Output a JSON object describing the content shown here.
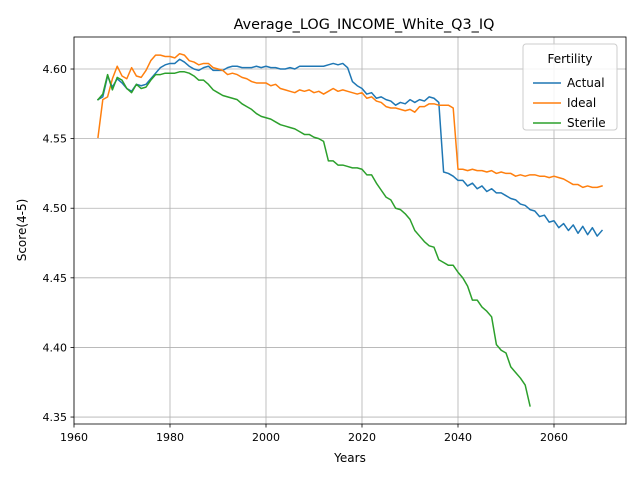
{
  "chart_data": {
    "type": "line",
    "title": "Average_LOG_INCOME_White_Q3_IQ",
    "xlabel": "Years",
    "ylabel": "Score(4-5)",
    "xlim": [
      1960,
      2075
    ],
    "ylim": [
      4.345,
      4.623
    ],
    "x_ticks": [
      1960,
      1980,
      2000,
      2020,
      2040,
      2060
    ],
    "y_ticks": [
      4.35,
      4.4,
      4.45,
      4.5,
      4.55,
      4.6
    ],
    "grid": true,
    "legend": {
      "title": "Fertility",
      "position": "top-right"
    },
    "series": [
      {
        "name": "Actual",
        "color": "#1f77b4",
        "points": [
          [
            1965,
            4.578
          ],
          [
            1966,
            4.58
          ],
          [
            1967,
            4.595
          ],
          [
            1968,
            4.587
          ],
          [
            1969,
            4.593
          ],
          [
            1970,
            4.59
          ],
          [
            1971,
            4.586
          ],
          [
            1972,
            4.584
          ],
          [
            1973,
            4.589
          ],
          [
            1974,
            4.588
          ],
          [
            1975,
            4.589
          ],
          [
            1976,
            4.593
          ],
          [
            1977,
            4.597
          ],
          [
            1978,
            4.601
          ],
          [
            1979,
            4.603
          ],
          [
            1980,
            4.604
          ],
          [
            1981,
            4.604
          ],
          [
            1982,
            4.607
          ],
          [
            1983,
            4.605
          ],
          [
            1984,
            4.602
          ],
          [
            1985,
            4.6
          ],
          [
            1986,
            4.599
          ],
          [
            1987,
            4.601
          ],
          [
            1988,
            4.602
          ],
          [
            1989,
            4.599
          ],
          [
            1990,
            4.599
          ],
          [
            1991,
            4.599
          ],
          [
            1992,
            4.601
          ],
          [
            1993,
            4.602
          ],
          [
            1994,
            4.602
          ],
          [
            1995,
            4.601
          ],
          [
            1996,
            4.601
          ],
          [
            1997,
            4.601
          ],
          [
            1998,
            4.602
          ],
          [
            1999,
            4.601
          ],
          [
            2000,
            4.602
          ],
          [
            2001,
            4.601
          ],
          [
            2002,
            4.601
          ],
          [
            2003,
            4.6
          ],
          [
            2004,
            4.6
          ],
          [
            2005,
            4.601
          ],
          [
            2006,
            4.6
          ],
          [
            2007,
            4.602
          ],
          [
            2008,
            4.602
          ],
          [
            2009,
            4.602
          ],
          [
            2010,
            4.602
          ],
          [
            2011,
            4.602
          ],
          [
            2012,
            4.602
          ],
          [
            2013,
            4.603
          ],
          [
            2014,
            4.604
          ],
          [
            2015,
            4.603
          ],
          [
            2016,
            4.604
          ],
          [
            2017,
            4.601
          ],
          [
            2018,
            4.591
          ],
          [
            2019,
            4.588
          ],
          [
            2020,
            4.586
          ],
          [
            2021,
            4.582
          ],
          [
            2022,
            4.583
          ],
          [
            2023,
            4.579
          ],
          [
            2024,
            4.58
          ],
          [
            2025,
            4.578
          ],
          [
            2026,
            4.577
          ],
          [
            2027,
            4.574
          ],
          [
            2028,
            4.576
          ],
          [
            2029,
            4.575
          ],
          [
            2030,
            4.578
          ],
          [
            2031,
            4.576
          ],
          [
            2032,
            4.578
          ],
          [
            2033,
            4.577
          ],
          [
            2034,
            4.58
          ],
          [
            2035,
            4.579
          ],
          [
            2036,
            4.576
          ],
          [
            2037,
            4.526
          ],
          [
            2038,
            4.525
          ],
          [
            2039,
            4.523
          ],
          [
            2040,
            4.52
          ],
          [
            2041,
            4.52
          ],
          [
            2042,
            4.516
          ],
          [
            2043,
            4.518
          ],
          [
            2044,
            4.514
          ],
          [
            2045,
            4.516
          ],
          [
            2046,
            4.512
          ],
          [
            2047,
            4.514
          ],
          [
            2048,
            4.511
          ],
          [
            2049,
            4.511
          ],
          [
            2050,
            4.509
          ],
          [
            2051,
            4.507
          ],
          [
            2052,
            4.506
          ],
          [
            2053,
            4.503
          ],
          [
            2054,
            4.502
          ],
          [
            2055,
            4.499
          ],
          [
            2056,
            4.498
          ],
          [
            2057,
            4.494
          ],
          [
            2058,
            4.495
          ],
          [
            2059,
            4.49
          ],
          [
            2060,
            4.491
          ],
          [
            2061,
            4.486
          ],
          [
            2062,
            4.489
          ],
          [
            2063,
            4.484
          ],
          [
            2064,
            4.488
          ],
          [
            2065,
            4.482
          ],
          [
            2066,
            4.487
          ],
          [
            2067,
            4.481
          ],
          [
            2068,
            4.486
          ],
          [
            2069,
            4.48
          ],
          [
            2070,
            4.484
          ]
        ]
      },
      {
        "name": "Ideal",
        "color": "#ff7f0e",
        "points": [
          [
            1965,
            4.551
          ],
          [
            1966,
            4.578
          ],
          [
            1967,
            4.58
          ],
          [
            1968,
            4.593
          ],
          [
            1969,
            4.602
          ],
          [
            1970,
            4.595
          ],
          [
            1971,
            4.593
          ],
          [
            1972,
            4.601
          ],
          [
            1973,
            4.595
          ],
          [
            1974,
            4.594
          ],
          [
            1975,
            4.599
          ],
          [
            1976,
            4.606
          ],
          [
            1977,
            4.61
          ],
          [
            1978,
            4.61
          ],
          [
            1979,
            4.609
          ],
          [
            1980,
            4.609
          ],
          [
            1981,
            4.608
          ],
          [
            1982,
            4.611
          ],
          [
            1983,
            4.61
          ],
          [
            1984,
            4.606
          ],
          [
            1985,
            4.605
          ],
          [
            1986,
            4.603
          ],
          [
            1987,
            4.604
          ],
          [
            1988,
            4.604
          ],
          [
            1989,
            4.601
          ],
          [
            1990,
            4.6
          ],
          [
            1991,
            4.599
          ],
          [
            1992,
            4.596
          ],
          [
            1993,
            4.597
          ],
          [
            1994,
            4.596
          ],
          [
            1995,
            4.594
          ],
          [
            1996,
            4.593
          ],
          [
            1997,
            4.591
          ],
          [
            1998,
            4.59
          ],
          [
            1999,
            4.59
          ],
          [
            2000,
            4.59
          ],
          [
            2001,
            4.588
          ],
          [
            2002,
            4.589
          ],
          [
            2003,
            4.586
          ],
          [
            2004,
            4.585
          ],
          [
            2005,
            4.584
          ],
          [
            2006,
            4.583
          ],
          [
            2007,
            4.585
          ],
          [
            2008,
            4.584
          ],
          [
            2009,
            4.585
          ],
          [
            2010,
            4.583
          ],
          [
            2011,
            4.584
          ],
          [
            2012,
            4.582
          ],
          [
            2013,
            4.584
          ],
          [
            2014,
            4.586
          ],
          [
            2015,
            4.584
          ],
          [
            2016,
            4.585
          ],
          [
            2017,
            4.584
          ],
          [
            2018,
            4.583
          ],
          [
            2019,
            4.582
          ],
          [
            2020,
            4.583
          ],
          [
            2021,
            4.579
          ],
          [
            2022,
            4.58
          ],
          [
            2023,
            4.577
          ],
          [
            2024,
            4.576
          ],
          [
            2025,
            4.573
          ],
          [
            2026,
            4.572
          ],
          [
            2027,
            4.572
          ],
          [
            2028,
            4.571
          ],
          [
            2029,
            4.57
          ],
          [
            2030,
            4.571
          ],
          [
            2031,
            4.569
          ],
          [
            2032,
            4.573
          ],
          [
            2033,
            4.573
          ],
          [
            2034,
            4.575
          ],
          [
            2035,
            4.575
          ],
          [
            2036,
            4.574
          ],
          [
            2037,
            4.574
          ],
          [
            2038,
            4.574
          ],
          [
            2039,
            4.572
          ],
          [
            2040,
            4.528
          ],
          [
            2041,
            4.528
          ],
          [
            2042,
            4.527
          ],
          [
            2043,
            4.528
          ],
          [
            2044,
            4.527
          ],
          [
            2045,
            4.527
          ],
          [
            2046,
            4.526
          ],
          [
            2047,
            4.527
          ],
          [
            2048,
            4.525
          ],
          [
            2049,
            4.526
          ],
          [
            2050,
            4.525
          ],
          [
            2051,
            4.525
          ],
          [
            2052,
            4.523
          ],
          [
            2053,
            4.524
          ],
          [
            2054,
            4.523
          ],
          [
            2055,
            4.524
          ],
          [
            2056,
            4.524
          ],
          [
            2057,
            4.523
          ],
          [
            2058,
            4.523
          ],
          [
            2059,
            4.522
          ],
          [
            2060,
            4.523
          ],
          [
            2061,
            4.522
          ],
          [
            2062,
            4.521
          ],
          [
            2063,
            4.519
          ],
          [
            2064,
            4.517
          ],
          [
            2065,
            4.517
          ],
          [
            2066,
            4.515
          ],
          [
            2067,
            4.516
          ],
          [
            2068,
            4.515
          ],
          [
            2069,
            4.515
          ],
          [
            2070,
            4.516
          ]
        ]
      },
      {
        "name": "Sterile",
        "color": "#2ca02c",
        "points": [
          [
            1965,
            4.578
          ],
          [
            1966,
            4.582
          ],
          [
            1967,
            4.596
          ],
          [
            1968,
            4.585
          ],
          [
            1969,
            4.594
          ],
          [
            1970,
            4.592
          ],
          [
            1971,
            4.586
          ],
          [
            1972,
            4.583
          ],
          [
            1973,
            4.589
          ],
          [
            1974,
            4.586
          ],
          [
            1975,
            4.587
          ],
          [
            1976,
            4.592
          ],
          [
            1977,
            4.596
          ],
          [
            1978,
            4.596
          ],
          [
            1979,
            4.597
          ],
          [
            1980,
            4.597
          ],
          [
            1981,
            4.597
          ],
          [
            1982,
            4.598
          ],
          [
            1983,
            4.598
          ],
          [
            1984,
            4.597
          ],
          [
            1985,
            4.595
          ],
          [
            1986,
            4.592
          ],
          [
            1987,
            4.592
          ],
          [
            1988,
            4.589
          ],
          [
            1989,
            4.585
          ],
          [
            1990,
            4.583
          ],
          [
            1991,
            4.581
          ],
          [
            1992,
            4.58
          ],
          [
            1993,
            4.579
          ],
          [
            1994,
            4.578
          ],
          [
            1995,
            4.575
          ],
          [
            1996,
            4.573
          ],
          [
            1997,
            4.571
          ],
          [
            1998,
            4.568
          ],
          [
            1999,
            4.566
          ],
          [
            2000,
            4.565
          ],
          [
            2001,
            4.564
          ],
          [
            2002,
            4.562
          ],
          [
            2003,
            4.56
          ],
          [
            2004,
            4.559
          ],
          [
            2005,
            4.558
          ],
          [
            2006,
            4.557
          ],
          [
            2007,
            4.555
          ],
          [
            2008,
            4.553
          ],
          [
            2009,
            4.553
          ],
          [
            2010,
            4.551
          ],
          [
            2011,
            4.55
          ],
          [
            2012,
            4.548
          ],
          [
            2013,
            4.534
          ],
          [
            2014,
            4.534
          ],
          [
            2015,
            4.531
          ],
          [
            2016,
            4.531
          ],
          [
            2017,
            4.53
          ],
          [
            2018,
            4.529
          ],
          [
            2019,
            4.529
          ],
          [
            2020,
            4.528
          ],
          [
            2021,
            4.524
          ],
          [
            2022,
            4.524
          ],
          [
            2023,
            4.518
          ],
          [
            2024,
            4.513
          ],
          [
            2025,
            4.508
          ],
          [
            2026,
            4.506
          ],
          [
            2027,
            4.5
          ],
          [
            2028,
            4.499
          ],
          [
            2029,
            4.496
          ],
          [
            2030,
            4.492
          ],
          [
            2031,
            4.484
          ],
          [
            2032,
            4.48
          ],
          [
            2033,
            4.476
          ],
          [
            2034,
            4.473
          ],
          [
            2035,
            4.472
          ],
          [
            2036,
            4.463
          ],
          [
            2037,
            4.461
          ],
          [
            2038,
            4.459
          ],
          [
            2039,
            4.459
          ],
          [
            2040,
            4.454
          ],
          [
            2041,
            4.45
          ],
          [
            2042,
            4.444
          ],
          [
            2043,
            4.434
          ],
          [
            2044,
            4.434
          ],
          [
            2045,
            4.429
          ],
          [
            2046,
            4.426
          ],
          [
            2047,
            4.422
          ],
          [
            2048,
            4.402
          ],
          [
            2049,
            4.398
          ],
          [
            2050,
            4.396
          ],
          [
            2051,
            4.386
          ],
          [
            2052,
            4.382
          ],
          [
            2053,
            4.378
          ],
          [
            2054,
            4.373
          ],
          [
            2055,
            4.358
          ]
        ]
      }
    ]
  }
}
